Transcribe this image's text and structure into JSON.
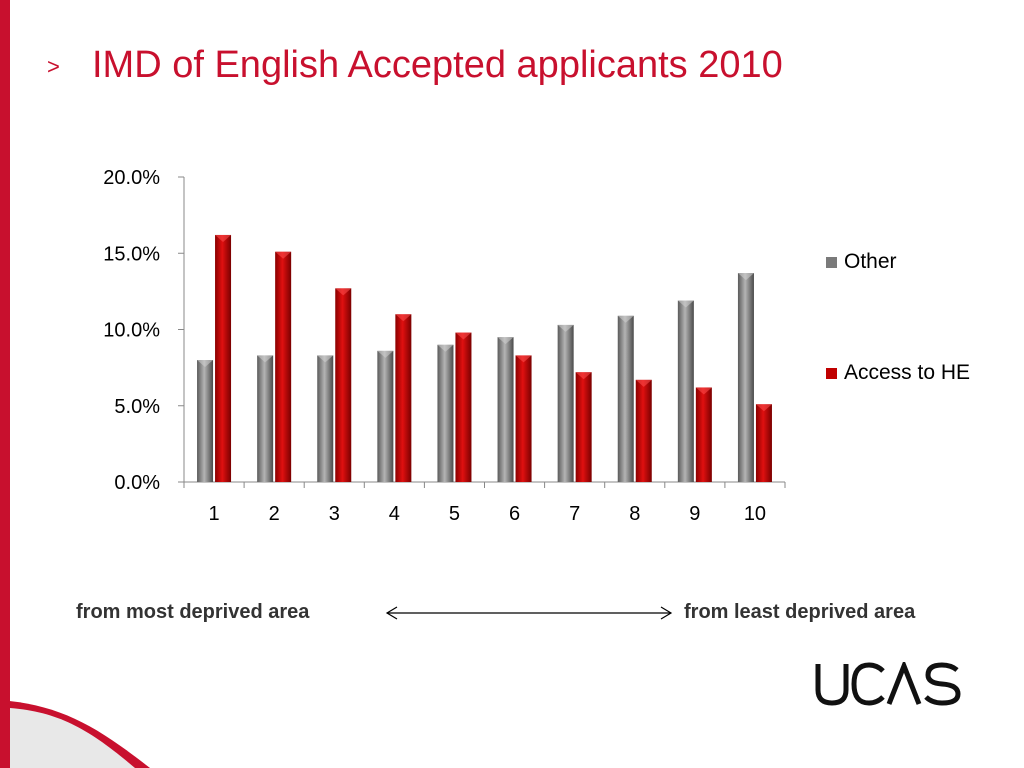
{
  "slide": {
    "title": "IMD of English Accepted applicants 2010",
    "chevron": ">",
    "accent_color": "#c8102e"
  },
  "captions": {
    "left": "from most deprived area",
    "right": "from least deprived area"
  },
  "logo": {
    "text": "UCAS"
  },
  "chart_data": {
    "type": "bar",
    "title": "",
    "xlabel": "",
    "ylabel": "",
    "categories": [
      "1",
      "2",
      "3",
      "4",
      "5",
      "6",
      "7",
      "8",
      "9",
      "10"
    ],
    "ylim": [
      0,
      0.2
    ],
    "yticks": [
      "0.0%",
      "5.0%",
      "10.0%",
      "15.0%",
      "20.0%"
    ],
    "ytick_values": [
      0,
      0.05,
      0.1,
      0.15,
      0.2
    ],
    "grid": false,
    "legend_position": "right",
    "series": [
      {
        "name": "Other",
        "color": "#808080",
        "values": [
          0.08,
          0.083,
          0.083,
          0.086,
          0.09,
          0.095,
          0.103,
          0.109,
          0.119,
          0.137
        ]
      },
      {
        "name": "Access to HE",
        "color": "#c00000",
        "values": [
          0.162,
          0.151,
          0.127,
          0.11,
          0.098,
          0.083,
          0.072,
          0.067,
          0.062,
          0.051
        ]
      }
    ]
  }
}
